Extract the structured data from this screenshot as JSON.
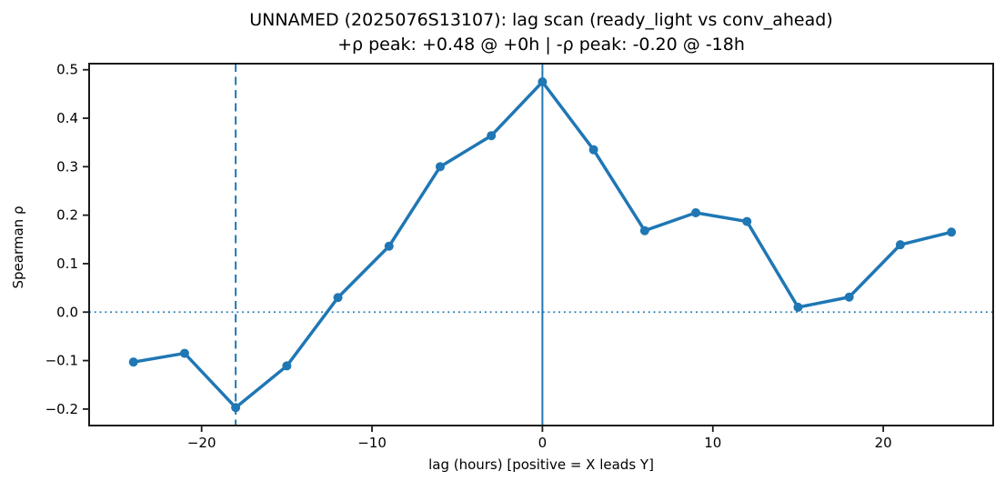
{
  "chart_data": {
    "type": "line",
    "title": "UNNAMED (2025076S13107): lag scan (ready_light vs conv_ahead)",
    "subtitle": "+ρ peak: +0.48 @ +0h | -ρ peak: -0.20 @ -18h",
    "xlabel": "lag (hours) [positive = X leads Y]",
    "ylabel": "Spearman ρ",
    "x": [
      -24,
      -21,
      -18,
      -15,
      -12,
      -9,
      -6,
      -3,
      0,
      3,
      6,
      9,
      12,
      15,
      18,
      21,
      24
    ],
    "y": [
      -0.103,
      -0.085,
      -0.197,
      -0.111,
      0.03,
      0.136,
      0.3,
      0.364,
      0.475,
      0.335,
      0.168,
      0.205,
      0.187,
      0.01,
      0.031,
      0.139,
      0.165
    ],
    "xlim": [
      -26.6,
      26.45
    ],
    "ylim": [
      -0.234,
      0.5126
    ],
    "xticks": [
      -20,
      -10,
      0,
      10,
      20
    ],
    "yticks": [
      0.5,
      0.4,
      0.3,
      0.2,
      0.1,
      0.0,
      -0.1,
      -0.2
    ],
    "grid": false,
    "legend_position": "none",
    "annotations": {
      "pos_peak_value": "+0.48",
      "pos_peak_lag_hours": 0,
      "neg_peak_value": "-0.20",
      "neg_peak_lag_hours": -18,
      "hline_dotted_y": 0
    },
    "colors": {
      "series": "#1f77b4",
      "axis": "#1a1a1a",
      "text": "#000000",
      "background": "#ffffff"
    }
  }
}
